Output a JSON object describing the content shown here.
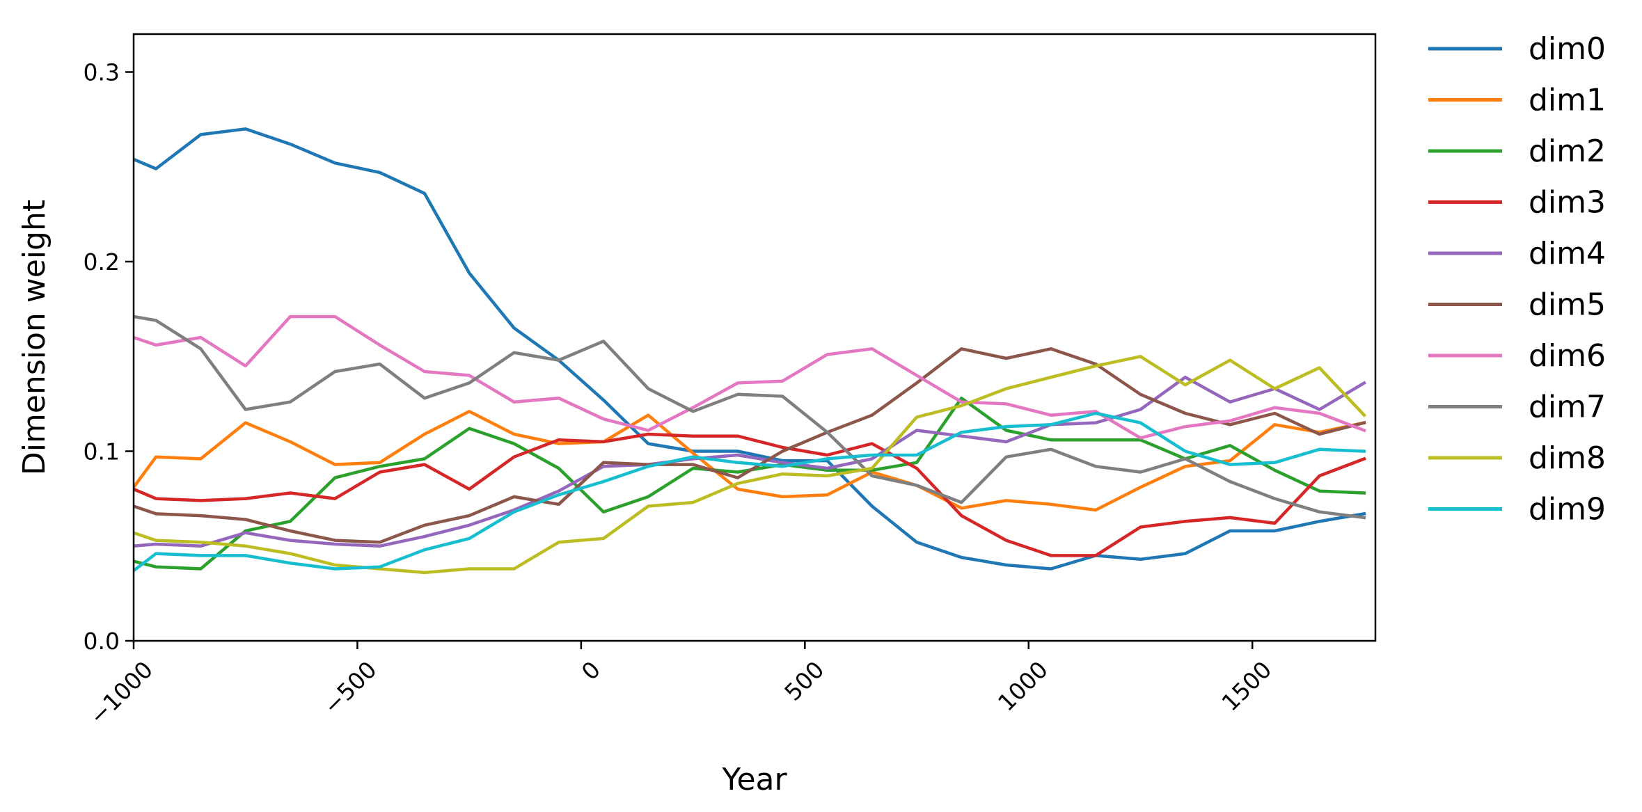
{
  "chart_data": {
    "type": "line",
    "title": "",
    "xlabel": "Year",
    "ylabel": "Dimension weight",
    "xlim": [
      -1000,
      1775
    ],
    "ylim": [
      0.0,
      0.32
    ],
    "x_ticks": [
      -1000,
      -500,
      0,
      500,
      1000,
      1500
    ],
    "x_tick_labels": [
      "−1000",
      "−500",
      "0",
      "500",
      "1000",
      "1500"
    ],
    "y_ticks": [
      0.0,
      0.1,
      0.2,
      0.3
    ],
    "y_tick_labels": [
      "0.0",
      "0.1",
      "0.2",
      "0.3"
    ],
    "grid": false,
    "legend_position": "outside right",
    "x": [
      -1000,
      -950,
      -850,
      -750,
      -650,
      -550,
      -450,
      -350,
      -250,
      -150,
      -50,
      50,
      150,
      250,
      350,
      450,
      550,
      650,
      750,
      850,
      950,
      1050,
      1150,
      1250,
      1350,
      1450,
      1550,
      1650,
      1750
    ],
    "series": [
      {
        "name": "dim0",
        "color": "#1f77b4",
        "values": [
          0.254,
          0.249,
          0.267,
          0.27,
          0.262,
          0.252,
          0.247,
          0.236,
          0.194,
          0.165,
          0.148,
          0.127,
          0.104,
          0.1,
          0.1,
          0.095,
          0.095,
          0.071,
          0.052,
          0.044,
          0.04,
          0.038,
          0.045,
          0.043,
          0.046,
          0.058,
          0.058,
          0.063,
          0.067
        ]
      },
      {
        "name": "dim1",
        "color": "#ff7f0e",
        "values": [
          0.081,
          0.097,
          0.096,
          0.115,
          0.105,
          0.093,
          0.094,
          0.109,
          0.121,
          0.109,
          0.104,
          0.105,
          0.119,
          0.099,
          0.08,
          0.076,
          0.077,
          0.089,
          0.082,
          0.07,
          0.074,
          0.072,
          0.069,
          0.081,
          0.092,
          0.095,
          0.114,
          0.11,
          0.115
        ]
      },
      {
        "name": "dim2",
        "color": "#2ca02c",
        "values": [
          0.042,
          0.039,
          0.038,
          0.058,
          0.063,
          0.086,
          0.092,
          0.096,
          0.112,
          0.104,
          0.091,
          0.068,
          0.076,
          0.091,
          0.089,
          0.093,
          0.09,
          0.09,
          0.094,
          0.128,
          0.111,
          0.106,
          0.106,
          0.106,
          0.096,
          0.103,
          0.09,
          0.079,
          0.078
        ]
      },
      {
        "name": "dim3",
        "color": "#d62728",
        "values": [
          0.08,
          0.075,
          0.074,
          0.075,
          0.078,
          0.075,
          0.089,
          0.093,
          0.08,
          0.097,
          0.106,
          0.105,
          0.109,
          0.108,
          0.108,
          0.102,
          0.098,
          0.104,
          0.091,
          0.066,
          0.053,
          0.045,
          0.045,
          0.06,
          0.063,
          0.065,
          0.062,
          0.087,
          0.096
        ]
      },
      {
        "name": "dim4",
        "color": "#9467bd",
        "values": [
          0.05,
          0.051,
          0.05,
          0.057,
          0.053,
          0.051,
          0.05,
          0.055,
          0.061,
          0.069,
          0.079,
          0.092,
          0.093,
          0.096,
          0.098,
          0.094,
          0.091,
          0.096,
          0.111,
          0.108,
          0.105,
          0.114,
          0.115,
          0.122,
          0.139,
          0.126,
          0.133,
          0.122,
          0.136
        ]
      },
      {
        "name": "dim5",
        "color": "#8c564b",
        "values": [
          0.071,
          0.067,
          0.066,
          0.064,
          0.058,
          0.053,
          0.052,
          0.061,
          0.066,
          0.076,
          0.072,
          0.094,
          0.093,
          0.093,
          0.086,
          0.1,
          0.11,
          0.119,
          0.136,
          0.154,
          0.149,
          0.154,
          0.146,
          0.13,
          0.12,
          0.114,
          0.12,
          0.109,
          0.115
        ]
      },
      {
        "name": "dim6",
        "color": "#e377c2",
        "values": [
          0.16,
          0.156,
          0.16,
          0.145,
          0.171,
          0.171,
          0.156,
          0.142,
          0.14,
          0.126,
          0.128,
          0.117,
          0.111,
          0.123,
          0.136,
          0.137,
          0.151,
          0.154,
          0.14,
          0.126,
          0.125,
          0.119,
          0.121,
          0.107,
          0.113,
          0.116,
          0.123,
          0.12,
          0.111
        ]
      },
      {
        "name": "dim7",
        "color": "#7f7f7f",
        "values": [
          0.171,
          0.169,
          0.154,
          0.122,
          0.126,
          0.142,
          0.146,
          0.128,
          0.136,
          0.152,
          0.148,
          0.158,
          0.133,
          0.121,
          0.13,
          0.129,
          0.11,
          0.087,
          0.082,
          0.073,
          0.097,
          0.101,
          0.092,
          0.089,
          0.096,
          0.084,
          0.075,
          0.068,
          0.065
        ]
      },
      {
        "name": "dim8",
        "color": "#bcbd22",
        "values": [
          0.057,
          0.053,
          0.052,
          0.05,
          0.046,
          0.04,
          0.038,
          0.036,
          0.038,
          0.038,
          0.052,
          0.054,
          0.071,
          0.073,
          0.083,
          0.088,
          0.087,
          0.091,
          0.118,
          0.124,
          0.133,
          0.139,
          0.145,
          0.15,
          0.135,
          0.148,
          0.133,
          0.144,
          0.119
        ]
      },
      {
        "name": "dim9",
        "color": "#17becf",
        "values": [
          0.037,
          0.046,
          0.045,
          0.045,
          0.041,
          0.038,
          0.039,
          0.048,
          0.054,
          0.068,
          0.077,
          0.084,
          0.092,
          0.097,
          0.094,
          0.092,
          0.096,
          0.098,
          0.098,
          0.11,
          0.113,
          0.114,
          0.12,
          0.115,
          0.1,
          0.093,
          0.094,
          0.101,
          0.1
        ]
      }
    ]
  }
}
